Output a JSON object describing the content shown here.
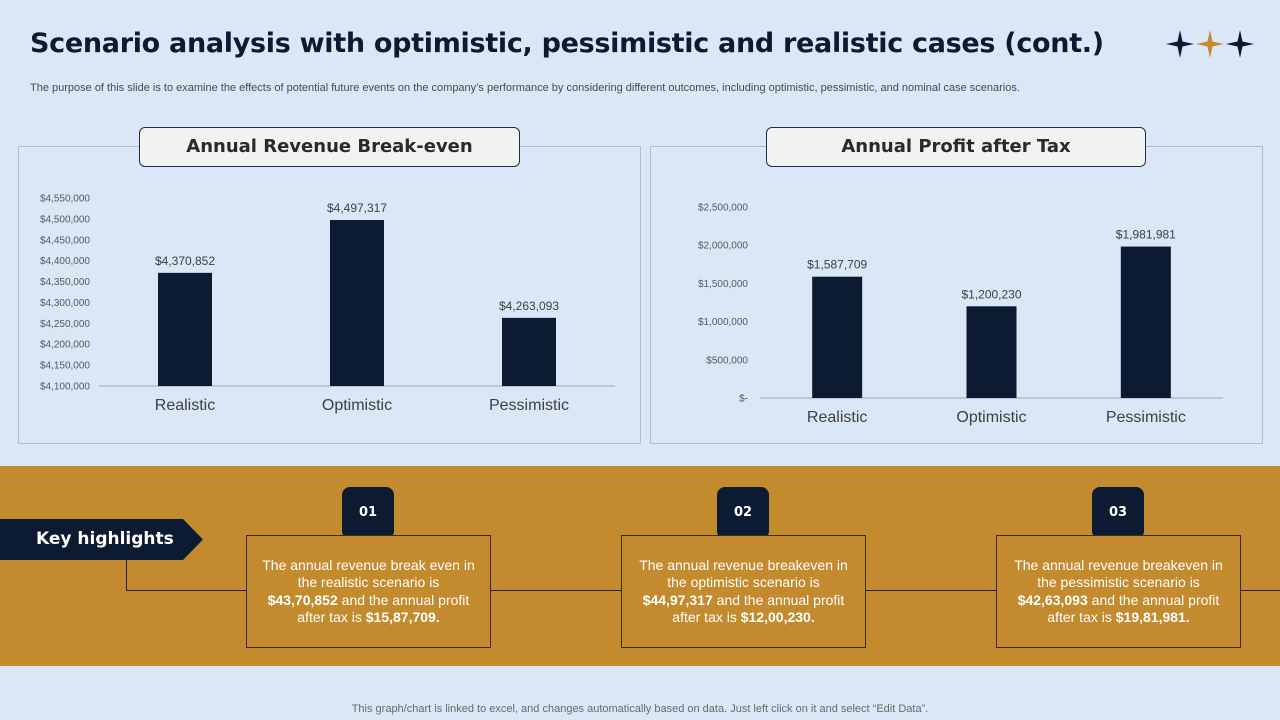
{
  "slide": {
    "title": "Scenario analysis with optimistic, pessimistic and realistic cases (cont.)",
    "subtitle": "The purpose of this slide is to examine the effects of potential future events on the company’s performance by considering different outcomes, including optimistic, pessimistic, and nominal case scenarios.",
    "footer": "This graph/chart is linked to excel,  and changes automatically based on data. Just left click on it and select “Edit Data”.",
    "colors": {
      "background": "#d9e7f6",
      "bar": "#0c1b31",
      "band": "#c48a2e",
      "star_gold": "#c48a2e",
      "star_navy": "#0c1b31"
    },
    "icons": [
      "star-icon",
      "star-icon",
      "star-icon"
    ]
  },
  "panels": {
    "revenue_title": "Annual Revenue Break-even",
    "profit_title": "Annual Profit after Tax"
  },
  "chart_data": [
    {
      "type": "bar",
      "title": "Annual Revenue Break-even",
      "categories": [
        "Realistic",
        "Optimistic",
        "Pessimistic"
      ],
      "values": [
        4370852,
        4497317,
        4263093
      ],
      "value_labels": [
        "$4,370,852",
        "$4,497,317",
        "$4,263,093"
      ],
      "ylim": [
        4100000,
        4550000
      ],
      "yticks": [
        4100000,
        4150000,
        4200000,
        4250000,
        4300000,
        4350000,
        4400000,
        4450000,
        4500000,
        4550000
      ],
      "ytick_labels": [
        "$4,100,000",
        "$4,150,000",
        "$4,200,000",
        "$4,250,000",
        "$4,300,000",
        "$4,350,000",
        "$4,400,000",
        "$4,450,000",
        "$4,500,000",
        "$4,550,000"
      ],
      "xlabel": "",
      "ylabel": "",
      "grid": false,
      "legend": false
    },
    {
      "type": "bar",
      "title": "Annual Profit after Tax",
      "categories": [
        "Realistic",
        "Optimistic",
        "Pessimistic"
      ],
      "values": [
        1587709,
        1200230,
        1981981
      ],
      "value_labels": [
        "$1,587,709",
        "$1,200,230",
        "$1,981,981"
      ],
      "ylim": [
        0,
        2500000
      ],
      "yticks": [
        0,
        500000,
        1000000,
        1500000,
        2000000,
        2500000
      ],
      "ytick_labels": [
        "$-",
        "$500,000",
        "$1,000,000",
        "$1,500,000",
        "$2,000,000",
        "$2,500,000"
      ],
      "xlabel": "",
      "ylabel": "",
      "grid": false,
      "legend": false
    }
  ],
  "highlights": {
    "label": "Key highlights",
    "items": [
      {
        "number": "01",
        "pre": "The annual revenue break even in the realistic scenario is ",
        "value1": "$43,70,852",
        "mid": " and the annual profit after tax is  ",
        "value2": "$15,87,709."
      },
      {
        "number": "02",
        "pre": "The annual revenue breakeven in the optimistic scenario is ",
        "value1": "$44,97,317",
        "mid": " and the annual profit after tax is ",
        "value2": "$12,00,230."
      },
      {
        "number": "03",
        "pre": "The annual revenue breakeven in the pessimistic scenario is ",
        "value1": "$42,63,093",
        "mid": " and the annual profit after tax is ",
        "value2": "$19,81,981."
      }
    ]
  }
}
